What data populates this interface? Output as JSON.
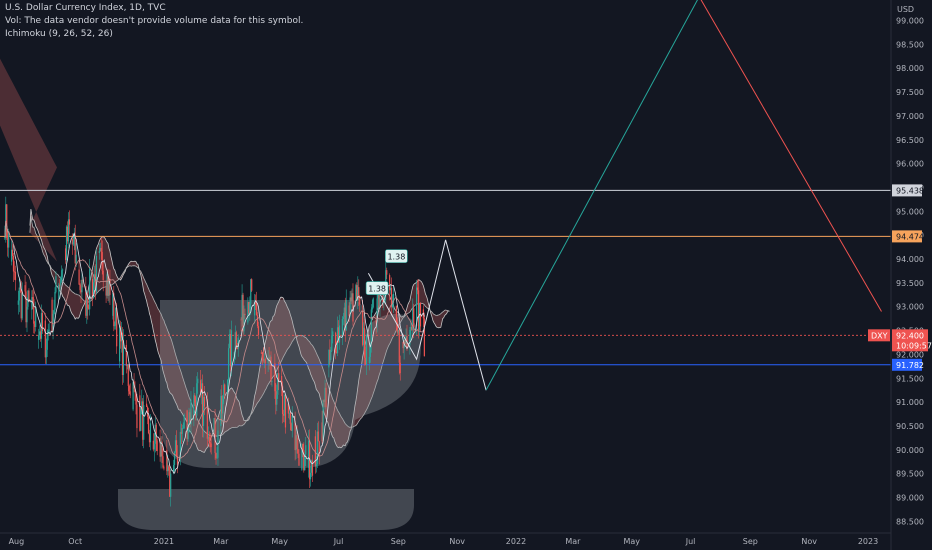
{
  "header": {
    "symbol_line": "U.S. Dollar Currency Index, 1D, TVC",
    "vol_line": "Vol: The data vendor doesn't provide volume data for this symbol.",
    "indicator_line": "Ichimoku (9, 26, 52, 26)"
  },
  "price_axis": {
    "currency": "USD",
    "ticks": [
      "99.000",
      "98.500",
      "98.000",
      "97.500",
      "97.000",
      "96.500",
      "96.000",
      "95.500",
      "95.000",
      "94.500",
      "94.000",
      "93.500",
      "93.000",
      "92.500",
      "92.000",
      "91.500",
      "91.000",
      "90.500",
      "90.000",
      "89.500",
      "89.000",
      "88.500"
    ]
  },
  "time_axis": {
    "ticks": [
      "Aug",
      "Oct",
      "2021",
      "Mar",
      "May",
      "Jul",
      "Sep",
      "Nov",
      "2022",
      "Mar",
      "May",
      "Jul",
      "Sep",
      "Nov",
      "2023"
    ]
  },
  "colors": {
    "background": "#131722",
    "up": "#26a69a",
    "down": "#ef5350",
    "white_line": "#e0e3eb",
    "orange_level": "#f7a35c",
    "blue_level": "#2962ff",
    "green_projection": "#26a69a",
    "red_projection": "#ef5350",
    "kumo_bearish": "#7b3f44",
    "kumo_bullish": "#2e5a4f"
  },
  "levels": [
    {
      "price": 95.438,
      "label": "95.438",
      "color": "#d1d4dc"
    },
    {
      "price": 94.474,
      "label": "94.474",
      "color": "#f7a35c"
    },
    {
      "price": 91.782,
      "label": "91.782",
      "color": "#2962ff"
    }
  ],
  "current_price": {
    "ticker": "DXY",
    "price": "92.400",
    "countdown": "10:09:57",
    "color": "#ef5350"
  },
  "pattern_labels": [
    {
      "text": "1.38",
      "time": "2021-08-10",
      "price": 93.38
    },
    {
      "text": "1.38",
      "time": "2021-08-30",
      "price": 94.05
    }
  ],
  "annotations": {
    "cup_handle": "cup drawing",
    "projection_zigzag": [
      {
        "time": "2021-08-01",
        "price": 93.7
      },
      {
        "time": "2021-09-20",
        "price": 91.9
      },
      {
        "time": "2021-10-20",
        "price": 94.4
      },
      {
        "time": "2021-12-01",
        "price": 91.25
      }
    ],
    "green_line": [
      {
        "time": "2021-12-01",
        "price": 91.25
      },
      {
        "time": "2022-07-10",
        "price": 99.5
      }
    ],
    "red_line": [
      {
        "time": "2022-07-10",
        "price": 99.5
      },
      {
        "time": "2023-01-15",
        "price": 92.9
      }
    ]
  },
  "chart_data": {
    "type": "line",
    "title": "U.S. Dollar Currency Index, 1D, TVC",
    "xlabel": "",
    "ylabel": "",
    "ylim": [
      88.3,
      99.3
    ],
    "xlim": [
      "2020-07-15",
      "2023-02-01"
    ],
    "grid": false,
    "series": [
      {
        "name": "",
        "points": [
          {
            "x": "2020-07-20",
            "y": 94.9
          },
          {
            "x": "2020-08-01",
            "y": 93.3
          },
          {
            "x": "2020-08-15",
            "y": 92.9
          },
          {
            "x": "2020-09-01",
            "y": 92.3
          },
          {
            "x": "2020-09-25",
            "y": 94.6
          },
          {
            "x": "2020-10-10",
            "y": 93.1
          },
          {
            "x": "2020-10-30",
            "y": 94.0
          },
          {
            "x": "2020-11-15",
            "y": 92.3
          },
          {
            "x": "2020-12-05",
            "y": 90.8
          },
          {
            "x": "2020-12-31",
            "y": 89.9
          },
          {
            "x": "2021-01-06",
            "y": 89.2
          },
          {
            "x": "2021-01-20",
            "y": 90.4
          },
          {
            "x": "2021-02-05",
            "y": 91.2
          },
          {
            "x": "2021-02-25",
            "y": 90.1
          },
          {
            "x": "2021-03-10",
            "y": 92.0
          },
          {
            "x": "2021-03-31",
            "y": 93.3
          },
          {
            "x": "2021-04-15",
            "y": 91.7
          },
          {
            "x": "2021-05-01",
            "y": 91.2
          },
          {
            "x": "2021-05-25",
            "y": 89.7
          },
          {
            "x": "2021-06-10",
            "y": 90.0
          },
          {
            "x": "2021-06-25",
            "y": 92.3
          },
          {
            "x": "2021-07-07",
            "y": 92.7
          },
          {
            "x": "2021-07-20",
            "y": 93.2
          },
          {
            "x": "2021-07-30",
            "y": 92.0
          },
          {
            "x": "2021-08-10",
            "y": 93.2
          },
          {
            "x": "2021-08-20",
            "y": 93.7
          },
          {
            "x": "2021-09-03",
            "y": 92.0
          },
          {
            "x": "2021-09-20",
            "y": 93.1
          },
          {
            "x": "2021-09-28",
            "y": 92.4
          }
        ]
      }
    ]
  }
}
